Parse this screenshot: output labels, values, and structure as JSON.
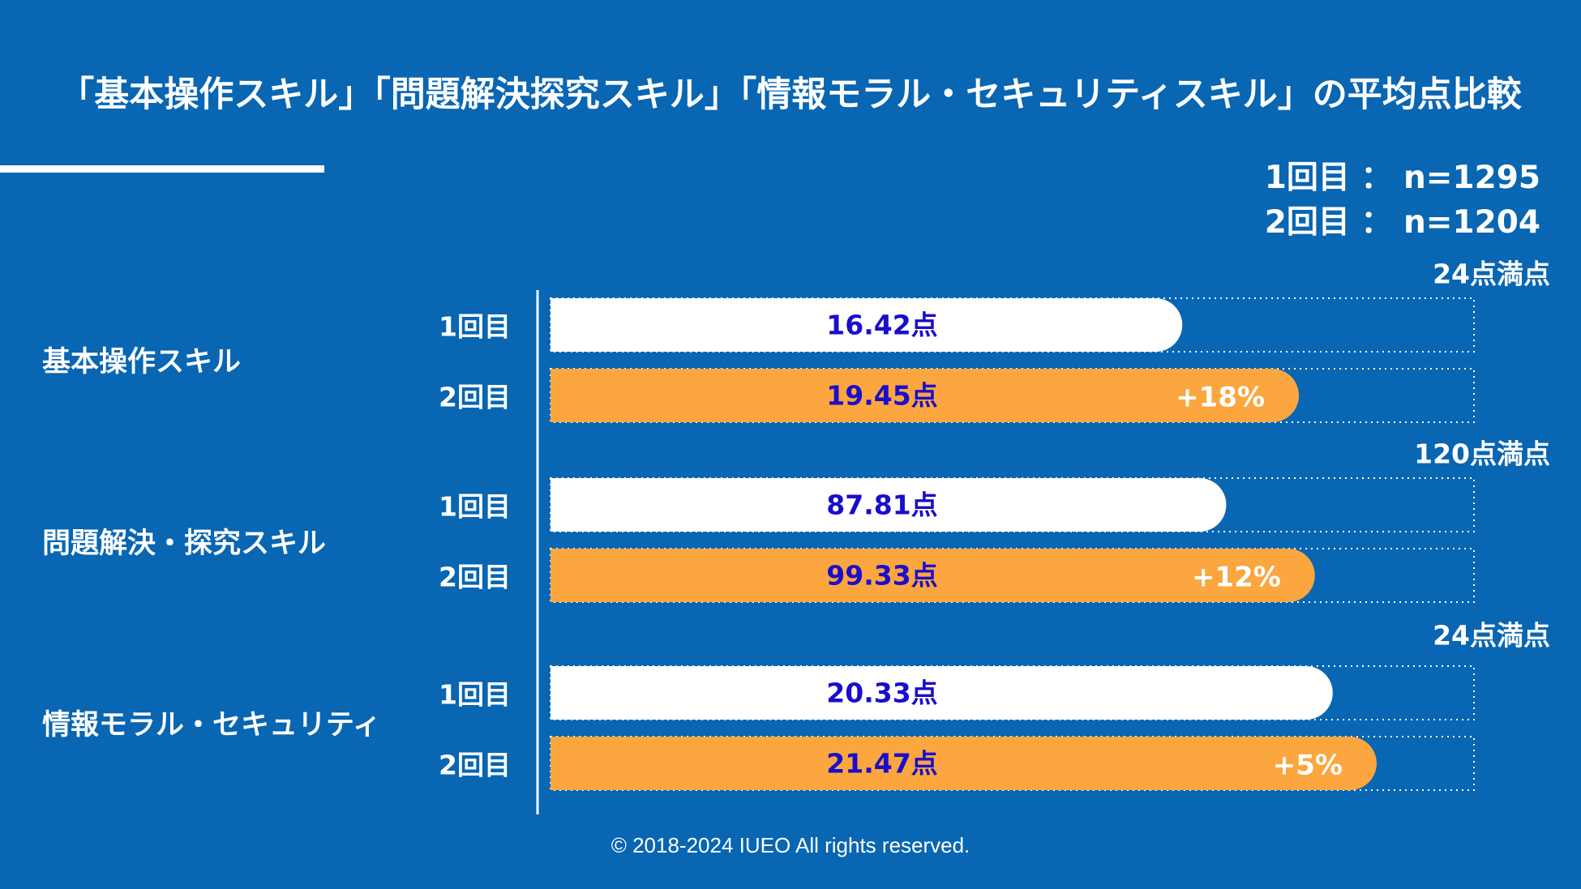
{
  "header": {
    "title": "「基本操作スキル」「問題解決探究スキル」「情報モラル・セキュリティスキル」の平均点比較",
    "sample_sizes": [
      "1回目 ： n=1295",
      "2回目 ： n=1204"
    ]
  },
  "chart_data": {
    "type": "bar",
    "orientation": "horizontal",
    "title": "「基本操作スキル」「問題解決探究スキル」「情報モラル・セキュリティスキル」の平均点比較",
    "series_labels": [
      "1回目",
      "2回目"
    ],
    "groups": [
      {
        "category": "基本操作スキル",
        "max_label": "24点満点",
        "max": 24,
        "values": [
          16.42,
          19.45
        ],
        "value_labels": [
          "16.42点",
          "19.45点"
        ],
        "change_label": "+18%"
      },
      {
        "category": "問題解決・探究スキル",
        "max_label": "120点満点",
        "max": 120,
        "values": [
          87.81,
          99.33
        ],
        "value_labels": [
          "87.81点",
          "99.33点"
        ],
        "change_label": "+12%"
      },
      {
        "category": "情報モラル・セキュリティ",
        "max_label": "24点満点",
        "max": 24,
        "values": [
          20.33,
          21.47
        ],
        "value_labels": [
          "20.33点",
          "21.47点"
        ],
        "change_label": "+5%"
      }
    ],
    "colors": {
      "background": "#0866b2",
      "series1": "#ffffff",
      "series2": "#fba63f",
      "value_text": "#1a0dcc",
      "guide": "#ffffff"
    },
    "grid": false
  },
  "footer": {
    "copyright": "© 2018-2024 IUEO All rights reserved."
  }
}
